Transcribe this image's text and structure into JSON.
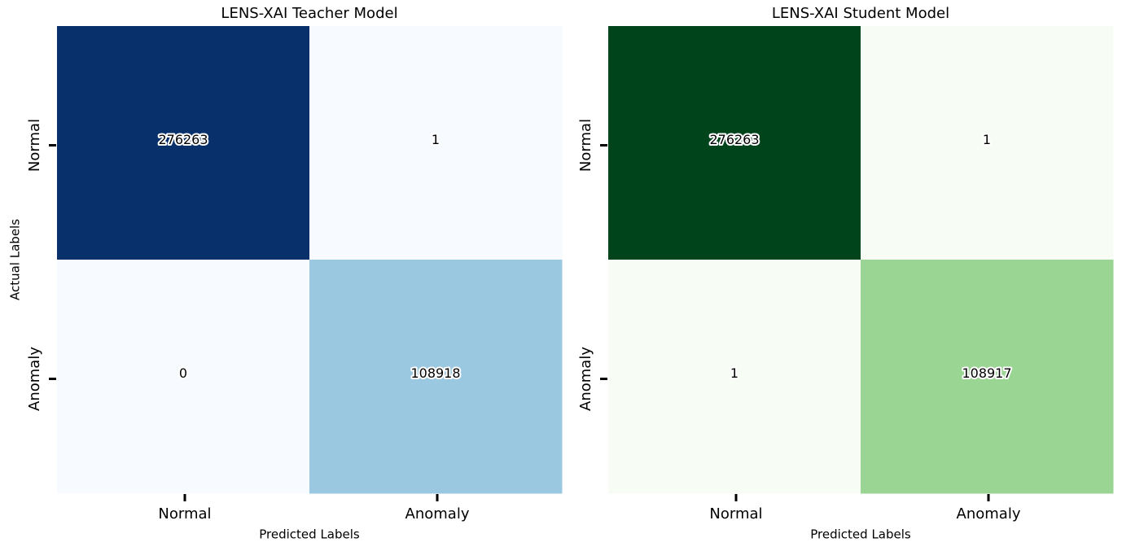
{
  "chart_data": [
    {
      "type": "heatmap",
      "title": "LENS-XAI Teacher Model",
      "x_categories": [
        "Normal",
        "Anomaly"
      ],
      "y_categories": [
        "Normal",
        "Anomaly"
      ],
      "values": [
        [
          276263,
          1
        ],
        [
          0,
          108918
        ]
      ],
      "cell_colors": [
        [
          "#08306b",
          "#f7fbff"
        ],
        [
          "#f7fbff",
          "#9ac8e0"
        ]
      ],
      "xlabel": "Predicted Labels",
      "ylabel": "Actual Labels"
    },
    {
      "type": "heatmap",
      "title": "LENS-XAI Student Model",
      "x_categories": [
        "Normal",
        "Anomaly"
      ],
      "y_categories": [
        "Normal",
        "Anomaly"
      ],
      "values": [
        [
          276263,
          1
        ],
        [
          1,
          108917
        ]
      ],
      "cell_colors": [
        [
          "#00441b",
          "#f7fcf5"
        ],
        [
          "#f7fcf5",
          "#9bd594"
        ]
      ],
      "xlabel": "Predicted Labels"
    }
  ]
}
